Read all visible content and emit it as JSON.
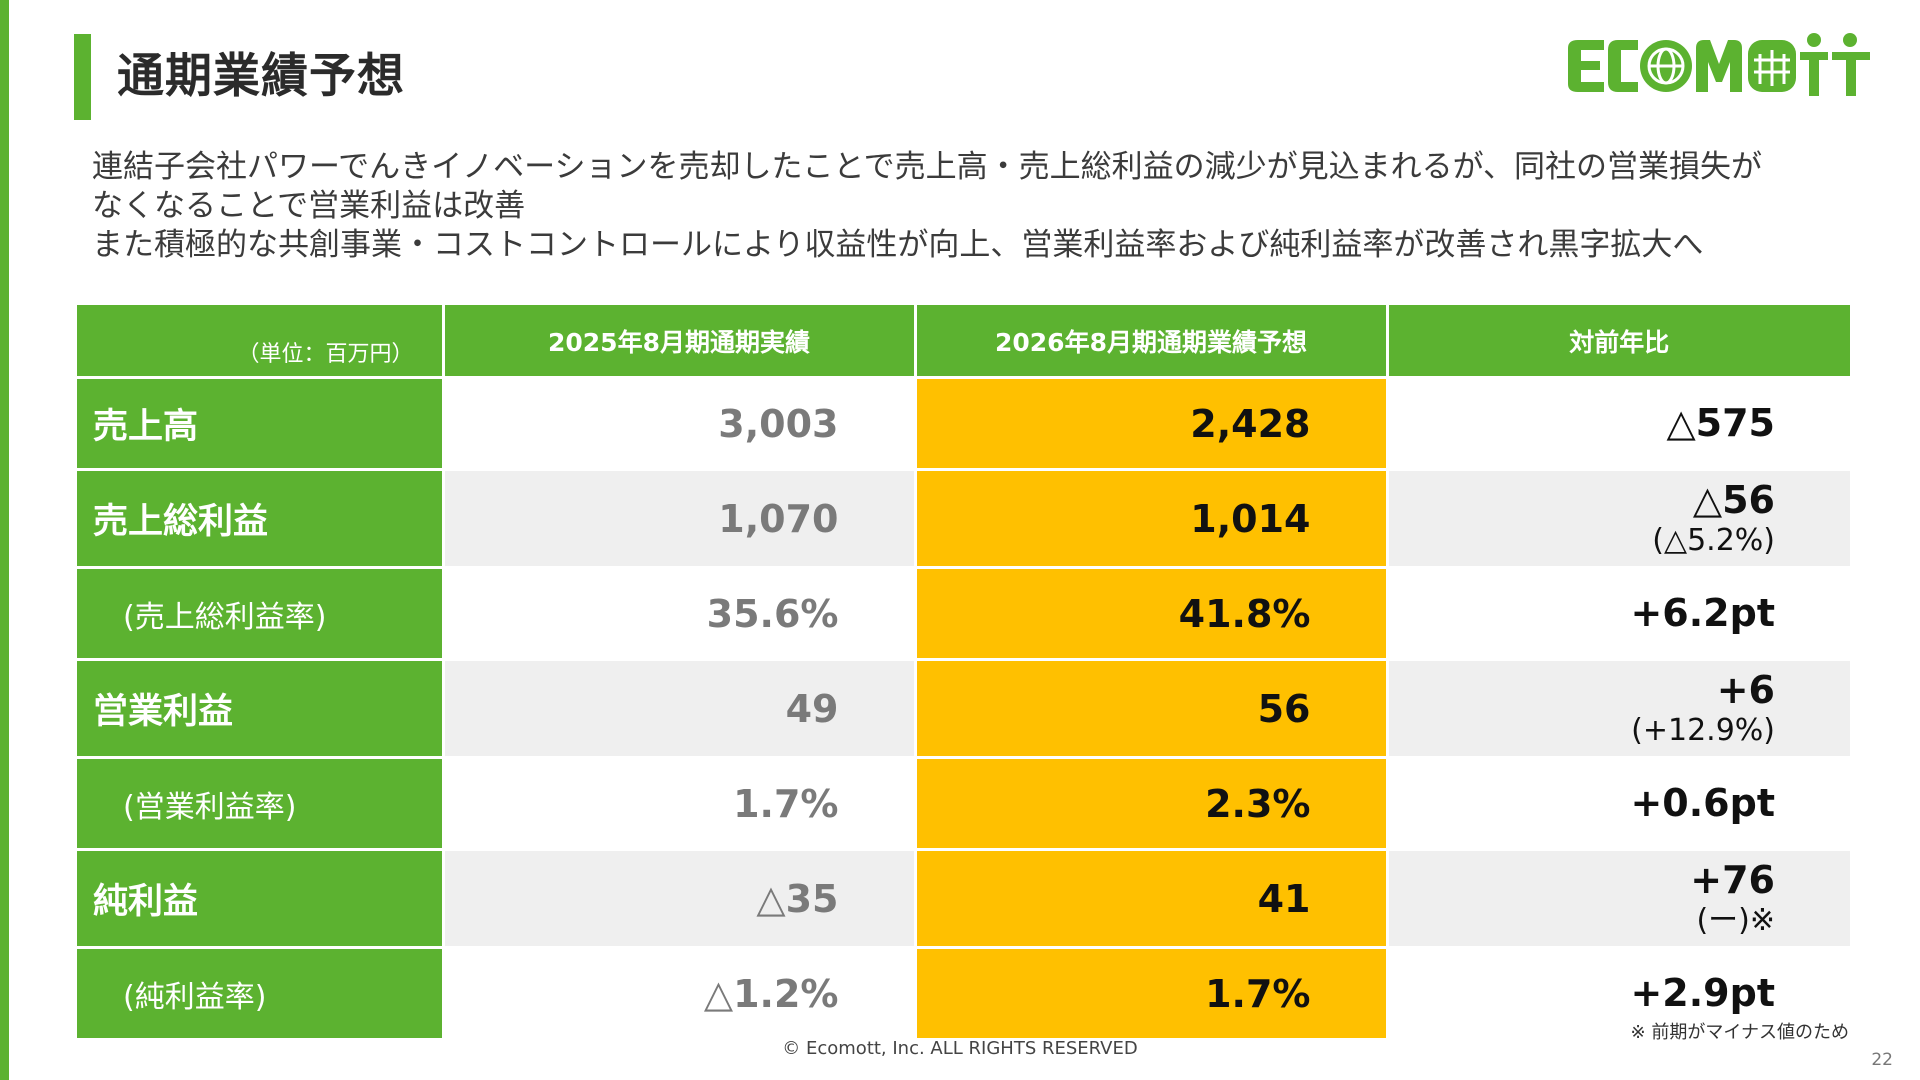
{
  "slide": {
    "title": "通期業績予想",
    "lead_lines": [
      "連結子会社パワーでんきイノベーションを売却したことで売上高・売上総利益の減少が見込まれるが、同社の営業損失が",
      "なくなることで営業利益は改善",
      "また積極的な共創事業・コストコントロールにより収益性が向上、営業利益率および純利益率が改善され黒字拡大へ"
    ],
    "logo_text": "ECOMOTT",
    "footnote": "※ 前期がマイナス値のため",
    "copyright": "© Ecomott, Inc. ALL RIGHTS RESERVED",
    "page_number": "22"
  },
  "table": {
    "headers": {
      "unit": "（単位：百万円）",
      "prev": "2025年8月期通期実績",
      "forecast": "2026年8月期通期業績予想",
      "yoy": "対前年比"
    },
    "rows": [
      {
        "label": "売上高",
        "prev": "3,003",
        "forecast": "2,428",
        "yoy": "△575",
        "yoy_sub": ""
      },
      {
        "label": "売上総利益",
        "prev": "1,070",
        "forecast": "1,014",
        "yoy": "△56",
        "yoy_sub": "(△5.2%)"
      },
      {
        "label": "(売上総利益率)",
        "prev": "35.6%",
        "forecast": "41.8%",
        "yoy": "+6.2pt",
        "yoy_sub": ""
      },
      {
        "label": "営業利益",
        "prev": "49",
        "forecast": "56",
        "yoy": "+6",
        "yoy_sub": "(+12.9%)"
      },
      {
        "label": "(営業利益率)",
        "prev": "1.7%",
        "forecast": "2.3%",
        "yoy": "+0.6pt",
        "yoy_sub": ""
      },
      {
        "label": "純利益",
        "prev": "△35",
        "forecast": "41",
        "yoy": "+76",
        "yoy_sub": "(ー)※"
      },
      {
        "label": "(純利益率)",
        "prev": "△1.2%",
        "forecast": "1.7%",
        "yoy": "+2.9pt",
        "yoy_sub": ""
      }
    ]
  },
  "colors": {
    "brand_green": "#5cb230",
    "forecast_highlight": "#ffc000",
    "alt_row": "#efefef"
  }
}
